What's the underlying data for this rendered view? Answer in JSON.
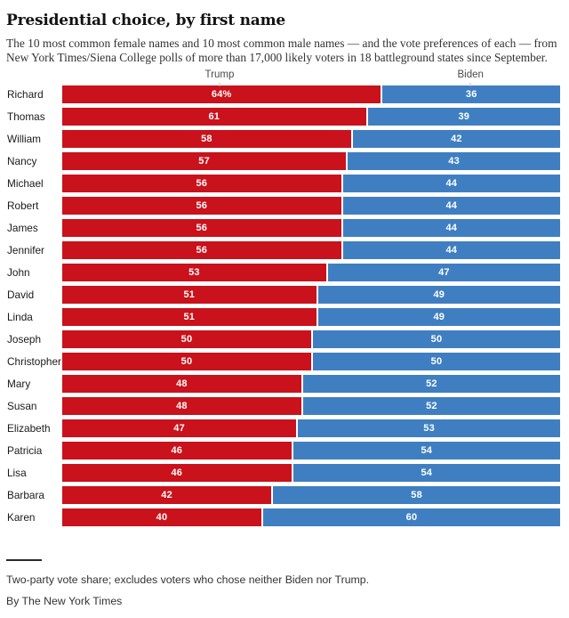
{
  "header": {
    "title": "Presidential choice, by first name",
    "subtitle_line1": "The 10 most common female names and 10 most common male names — and the vote preferences of each — from",
    "subtitle_line2": "New York Times/Siena College polls of more than 17,000 likely voters in 18 battleground states since September."
  },
  "chart_data": {
    "type": "bar",
    "orientation": "horizontal",
    "stacked": true,
    "xlim": [
      0,
      100
    ],
    "grid": false,
    "column_headers": [
      {
        "label": "Trump",
        "position_pct": 31.6
      },
      {
        "label": "Biden",
        "position_pct": 82.0
      }
    ],
    "categories": [
      "Richard",
      "Thomas",
      "William",
      "Nancy",
      "Michael",
      "Robert",
      "James",
      "Jennifer",
      "John",
      "David",
      "Linda",
      "Joseph",
      "Christopher",
      "Mary",
      "Susan",
      "Elizabeth",
      "Patricia",
      "Lisa",
      "Barbara",
      "Karen"
    ],
    "series": [
      {
        "name": "Trump",
        "color": "#c9121b",
        "values": [
          64,
          61,
          58,
          57,
          56,
          56,
          56,
          56,
          53,
          51,
          51,
          50,
          50,
          48,
          48,
          47,
          46,
          46,
          42,
          40
        ],
        "labels": [
          "64%",
          "61",
          "58",
          "57",
          "56",
          "56",
          "56",
          "56",
          "53",
          "51",
          "51",
          "50",
          "50",
          "48",
          "48",
          "47",
          "46",
          "46",
          "42",
          "40"
        ]
      },
      {
        "name": "Biden",
        "color": "#3f7fc1",
        "values": [
          36,
          39,
          42,
          43,
          44,
          44,
          44,
          44,
          47,
          49,
          49,
          50,
          50,
          52,
          52,
          53,
          54,
          54,
          58,
          60
        ],
        "labels": [
          "36",
          "39",
          "42",
          "43",
          "44",
          "44",
          "44",
          "44",
          "47",
          "49",
          "49",
          "50",
          "50",
          "52",
          "52",
          "53",
          "54",
          "54",
          "58",
          "60"
        ]
      }
    ]
  },
  "footer": {
    "footnote": "Two-party vote share; excludes voters who chose neither Biden nor Trump.",
    "byline": "By The New York Times"
  },
  "colors": {
    "trump_red": "#c9121b",
    "biden_blue": "#3f7fc1",
    "text_dark": "#121212",
    "text_gray": "#333333"
  }
}
